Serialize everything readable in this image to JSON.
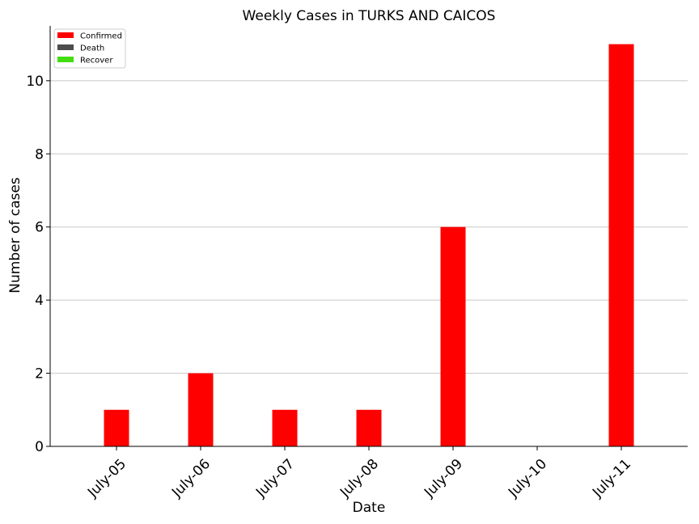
{
  "chart_data": {
    "type": "bar",
    "title": "Weekly Cases in TURKS AND CAICOS",
    "xlabel": "Date",
    "ylabel": "Number of cases",
    "categories": [
      "July-05",
      "July-06",
      "July-07",
      "July-08",
      "July-09",
      "July-10",
      "July-11"
    ],
    "series": [
      {
        "name": "Confirmed",
        "color": "#ff0000",
        "values": [
          1,
          2,
          1,
          1,
          6,
          0,
          11
        ]
      },
      {
        "name": "Death",
        "color": "#4d4d4d",
        "values": [
          0,
          0,
          0,
          0,
          0,
          0,
          0
        ]
      },
      {
        "name": "Recover",
        "color": "#44dd11",
        "values": [
          0,
          0,
          0,
          0,
          0,
          0,
          0
        ]
      }
    ],
    "yticks": [
      0,
      2,
      4,
      6,
      8,
      10
    ],
    "ylim": [
      0,
      11.5
    ],
    "grid": "horizontal",
    "legend_position": "top-left"
  }
}
